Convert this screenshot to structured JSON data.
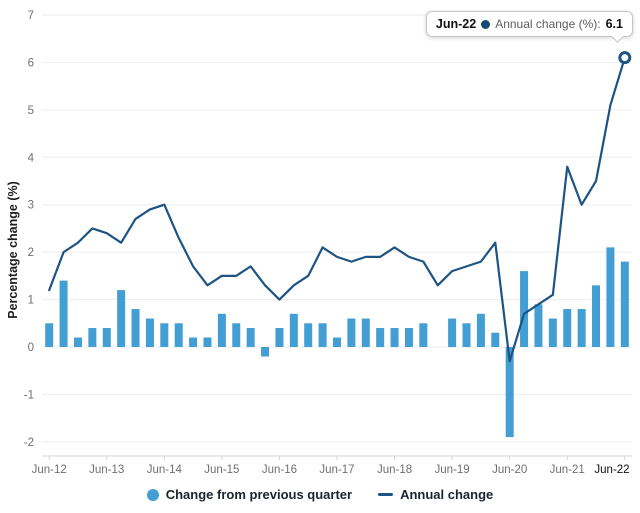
{
  "chart": {
    "y_axis_title": "Percentage change (%)",
    "y_ticks": [
      -2,
      -1,
      0,
      1,
      2,
      3,
      4,
      5,
      6,
      7
    ],
    "colors": {
      "bar": "#429ED3",
      "line": "#1D5484",
      "grid": "#ededed",
      "axis": "#d6d6d6",
      "tick_text": "#6f6f6f",
      "active_tick_text": "#0f0f0f",
      "tooltip_dot": "#174A73"
    },
    "tooltip": {
      "period": "Jun-22",
      "series": "Annual change (%):",
      "value": "6.1"
    },
    "legend": [
      {
        "type": "circle",
        "label": "Change from previous quarter",
        "color": "#429ED3"
      },
      {
        "type": "line",
        "label": "Annual change",
        "color": "#1D5484"
      }
    ]
  },
  "chart_data": {
    "type": "combo",
    "title": "",
    "xlabel": "",
    "ylabel": "Percentage change (%)",
    "ylim": [
      -2,
      7
    ],
    "grid": true,
    "legend_position": "bottom",
    "x_label_every": 4,
    "categories": [
      "Jun-12",
      "Sep-12",
      "Dec-12",
      "Mar-13",
      "Jun-13",
      "Sep-13",
      "Dec-13",
      "Mar-14",
      "Jun-14",
      "Sep-14",
      "Dec-14",
      "Mar-15",
      "Jun-15",
      "Sep-15",
      "Dec-15",
      "Mar-16",
      "Jun-16",
      "Sep-16",
      "Dec-16",
      "Mar-17",
      "Jun-17",
      "Sep-17",
      "Dec-17",
      "Mar-18",
      "Jun-18",
      "Sep-18",
      "Dec-18",
      "Mar-19",
      "Jun-19",
      "Sep-19",
      "Dec-19",
      "Mar-20",
      "Jun-20",
      "Sep-20",
      "Dec-20",
      "Mar-21",
      "Jun-21",
      "Sep-21",
      "Dec-21",
      "Mar-22",
      "Jun-22"
    ],
    "series": [
      {
        "name": "Change from previous quarter",
        "type": "bar",
        "values": [
          0.5,
          1.4,
          0.2,
          0.4,
          0.4,
          1.2,
          0.8,
          0.6,
          0.5,
          0.5,
          0.2,
          0.2,
          0.7,
          0.5,
          0.4,
          -0.2,
          0.4,
          0.7,
          0.5,
          0.5,
          0.2,
          0.6,
          0.6,
          0.4,
          0.4,
          0.4,
          0.5,
          0.0,
          0.6,
          0.5,
          0.7,
          0.3,
          -1.9,
          1.6,
          0.9,
          0.6,
          0.8,
          0.8,
          1.3,
          2.1,
          1.8
        ]
      },
      {
        "name": "Annual change",
        "type": "line",
        "values": [
          1.2,
          2.0,
          2.2,
          2.5,
          2.4,
          2.2,
          2.7,
          2.9,
          3.0,
          2.3,
          1.7,
          1.3,
          1.5,
          1.5,
          1.7,
          1.3,
          1.0,
          1.3,
          1.5,
          2.1,
          1.9,
          1.8,
          1.9,
          1.9,
          2.1,
          1.9,
          1.8,
          1.3,
          1.6,
          1.7,
          1.8,
          2.2,
          -0.3,
          0.7,
          0.9,
          1.1,
          3.8,
          3.0,
          3.5,
          5.1,
          6.1
        ]
      }
    ],
    "highlight": {
      "category": "Jun-22",
      "series": "Annual change",
      "value": 6.1
    }
  }
}
